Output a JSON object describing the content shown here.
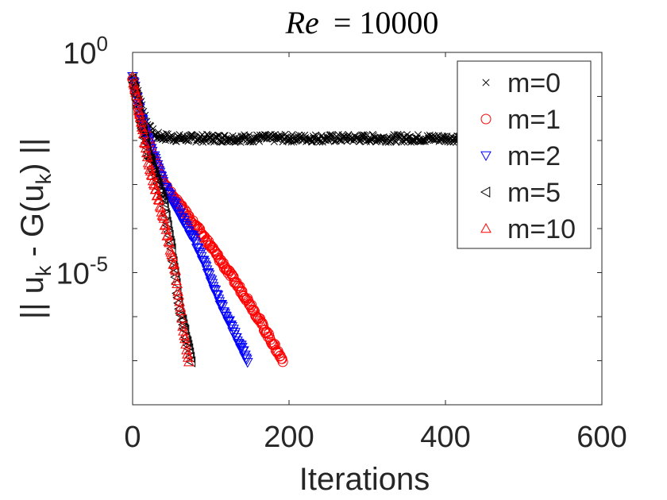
{
  "chart_data": {
    "type": "scatter",
    "title_var": "Re",
    "title_eq": "= 10000",
    "xlabel": "Iterations",
    "ylabel_parts": [
      "|| u",
      "k",
      " - G(u",
      "k",
      ") ||"
    ],
    "xlim": [
      0,
      600
    ],
    "x_ticks": [
      0,
      200,
      400,
      600
    ],
    "x_tick_labels": [
      "0",
      "200",
      "400",
      "600"
    ],
    "y_scale": "log",
    "ylim_exp": [
      -8.0,
      0
    ],
    "y_ticks": [
      {
        "exp": 0,
        "base": "10",
        "sup": "0"
      },
      {
        "exp": -5,
        "base": "10",
        "sup": "-5"
      }
    ],
    "legend_position": "top-right",
    "series": [
      {
        "name": "m=0",
        "marker": "x",
        "color": "#000000",
        "description": "rapid decrease then plateau at about 1e-2",
        "points_log10": [
          [
            0,
            -0.55
          ],
          [
            10,
            -1.1
          ],
          [
            20,
            -1.7
          ],
          [
            30,
            -1.9
          ],
          [
            60,
            -1.95
          ],
          [
            200,
            -1.95
          ],
          [
            420,
            -1.95
          ]
        ]
      },
      {
        "name": "m=1",
        "marker": "o",
        "color": "#ff0000",
        "points_log10": [
          [
            0,
            -0.55
          ],
          [
            10,
            -1.5
          ],
          [
            20,
            -2.0
          ],
          [
            40,
            -3.0
          ],
          [
            100,
            -4.4
          ],
          [
            150,
            -5.7
          ],
          [
            192,
            -7.0
          ]
        ]
      },
      {
        "name": "m=2",
        "marker": "triangle-down",
        "color": "#0000ff",
        "points_log10": [
          [
            0,
            -0.55
          ],
          [
            10,
            -1.4
          ],
          [
            20,
            -2.0
          ],
          [
            40,
            -3.0
          ],
          [
            80,
            -4.3
          ],
          [
            110,
            -5.6
          ],
          [
            147,
            -7.0
          ]
        ]
      },
      {
        "name": "m=5",
        "marker": "triangle-left",
        "color": "#000000",
        "points_log10": [
          [
            0,
            -0.55
          ],
          [
            10,
            -1.5
          ],
          [
            20,
            -2.3
          ],
          [
            40,
            -3.4
          ],
          [
            50,
            -4.5
          ],
          [
            60,
            -5.8
          ],
          [
            75,
            -7.0
          ]
        ]
      },
      {
        "name": "m=10",
        "marker": "triangle-up",
        "color": "#ff0000",
        "points_log10": [
          [
            0,
            -0.55
          ],
          [
            10,
            -1.5
          ],
          [
            20,
            -2.5
          ],
          [
            40,
            -3.8
          ],
          [
            55,
            -5.0
          ],
          [
            65,
            -6.3
          ],
          [
            72,
            -7.0
          ]
        ]
      }
    ]
  }
}
